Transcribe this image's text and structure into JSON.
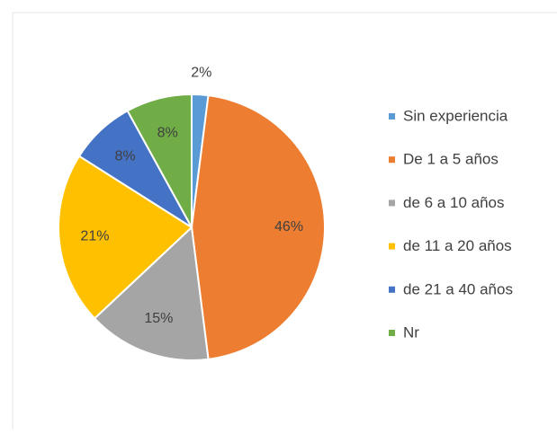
{
  "chart_data": {
    "type": "pie",
    "categories": [
      "Sin experiencia",
      "De 1 a 5 años",
      "de 6 a 10 años",
      "de 11 a 20 años",
      "de 21 a 40 años",
      "Nr"
    ],
    "values": [
      2,
      46,
      15,
      21,
      8,
      8
    ],
    "value_labels": [
      "2%",
      "46%",
      "15%",
      "21%",
      "8%",
      "8%"
    ],
    "colors": [
      "#5b9bd5",
      "#ed7d31",
      "#a5a5a5",
      "#ffc000",
      "#4472c4",
      "#70ad47"
    ],
    "legend": "right"
  }
}
